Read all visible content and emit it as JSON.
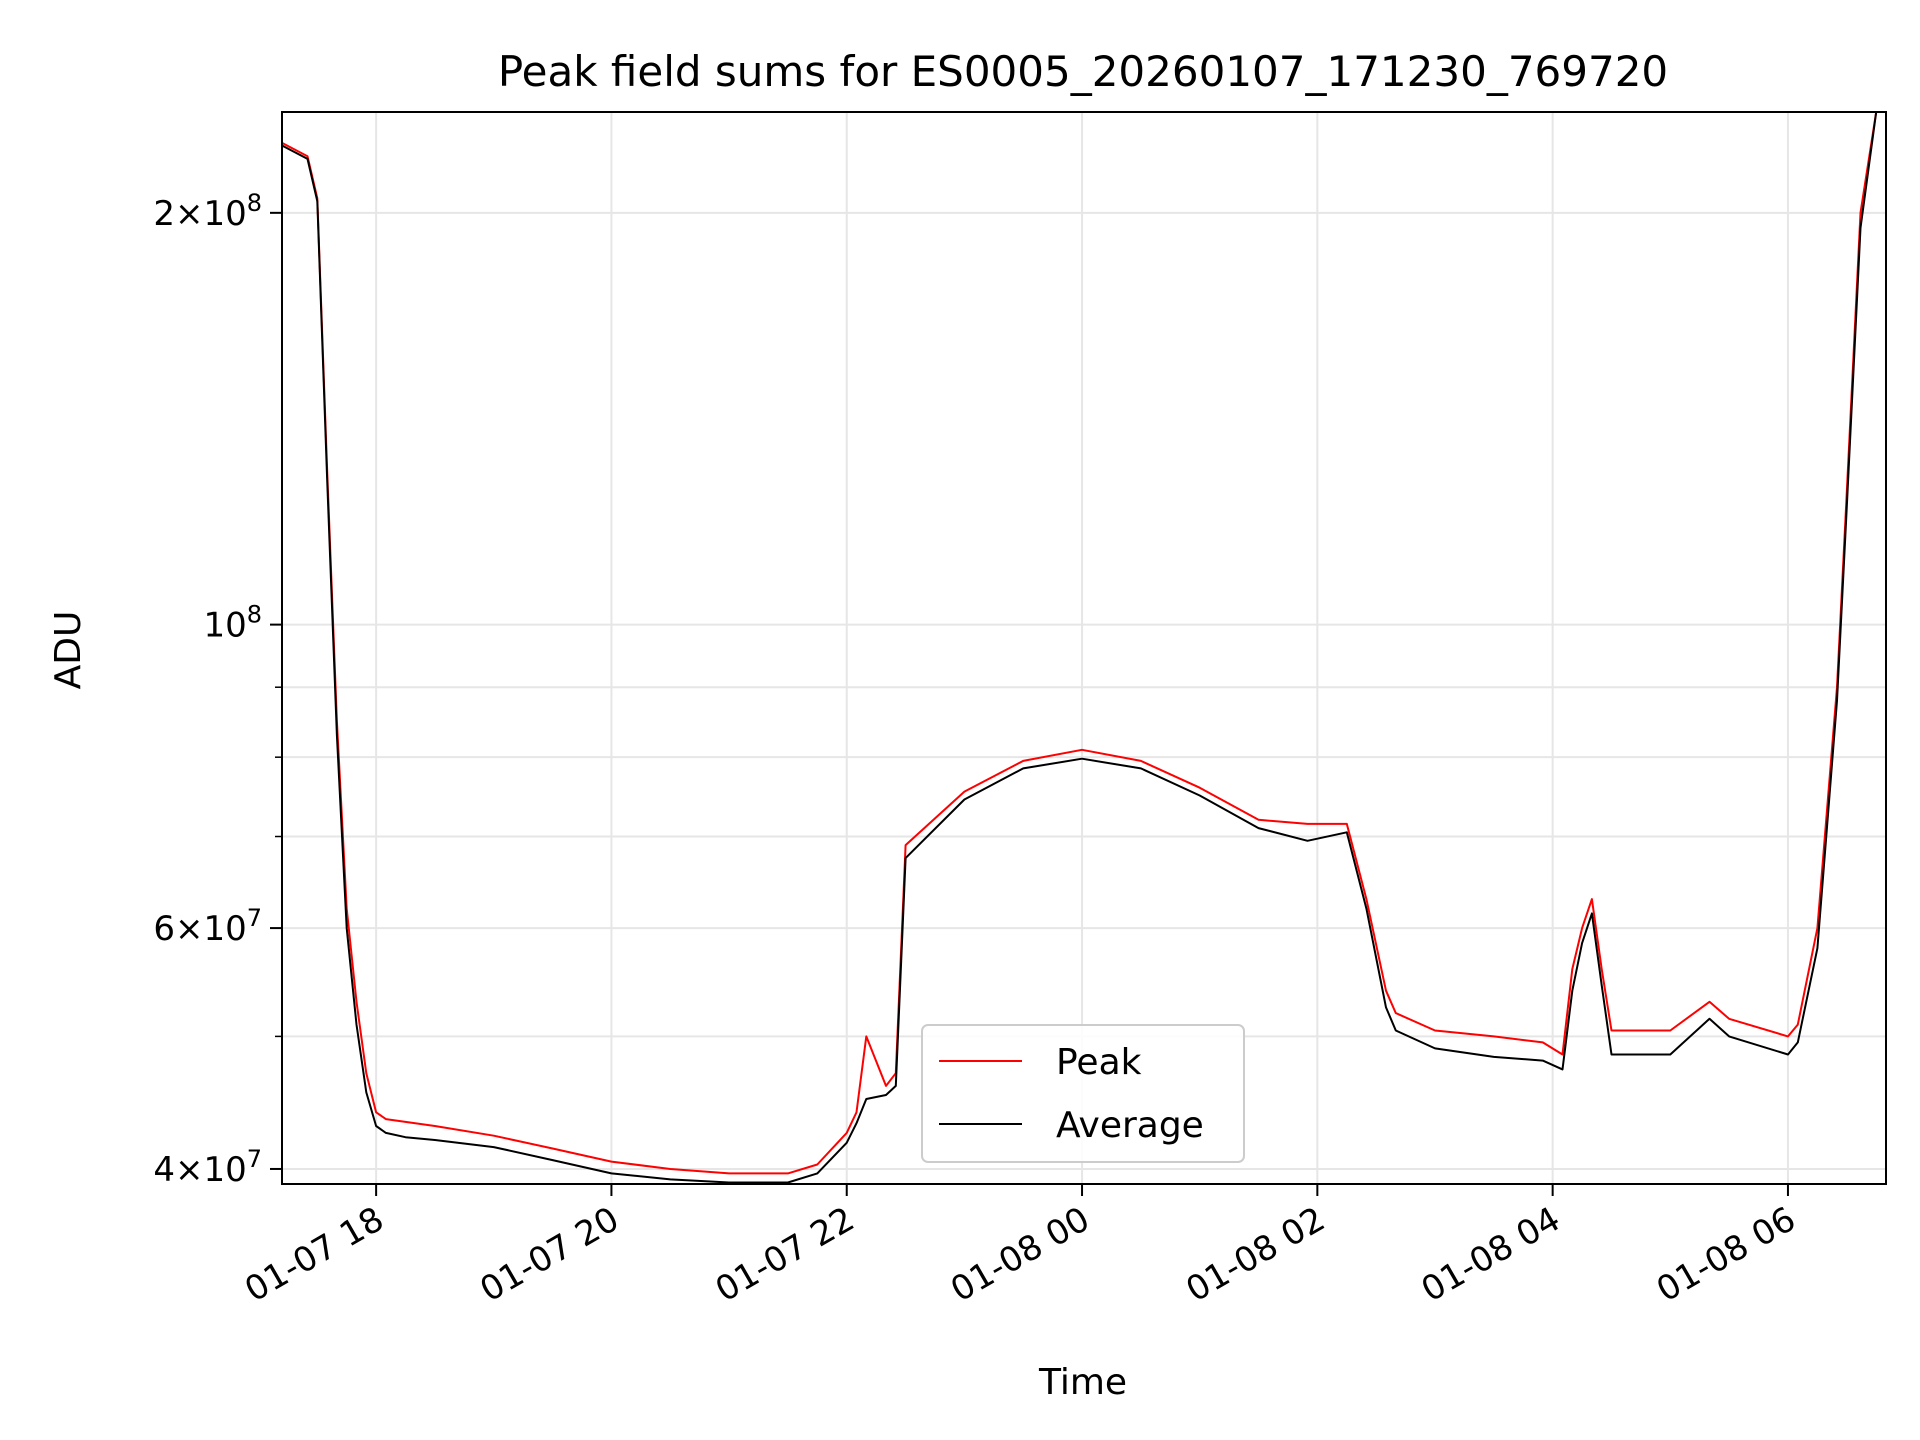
{
  "chart_data": {
    "type": "line",
    "title": "Peak field sums for ES0005_20260107_171230_769720",
    "xlabel": "Time",
    "ylabel": "ADU",
    "y_scale": "log",
    "ylim": [
      39000000,
      237000000
    ],
    "xlim": [
      "2026-01-07 17:12",
      "2026-01-08 06:50"
    ],
    "grid": true,
    "legend_position": "lower-center",
    "x_ticks": [
      {
        "value": "2026-01-07 18:00",
        "label": "01-07 18"
      },
      {
        "value": "2026-01-07 20:00",
        "label": "01-07 20"
      },
      {
        "value": "2026-01-07 22:00",
        "label": "01-07 22"
      },
      {
        "value": "2026-01-08 00:00",
        "label": "01-08 00"
      },
      {
        "value": "2026-01-08 02:00",
        "label": "01-08 02"
      },
      {
        "value": "2026-01-08 04:00",
        "label": "01-08 04"
      },
      {
        "value": "2026-01-08 06:00",
        "label": "01-08 06"
      }
    ],
    "y_ticks": [
      {
        "value": 40000000,
        "mantissa": "4",
        "exponent": "7"
      },
      {
        "value": 60000000,
        "mantissa": "6",
        "exponent": "7"
      },
      {
        "value": 100000000,
        "mantissa": "",
        "exponent": "8"
      },
      {
        "value": 200000000,
        "mantissa": "2",
        "exponent": "8"
      }
    ],
    "y_minor_ticks": [
      50000000,
      70000000,
      80000000,
      90000000
    ],
    "series": [
      {
        "name": "Peak",
        "color": "#ff0000",
        "x": [
          "2026-01-07 17:12",
          "2026-01-07 17:25",
          "2026-01-07 17:30",
          "2026-01-07 17:35",
          "2026-01-07 17:40",
          "2026-01-07 17:45",
          "2026-01-07 17:50",
          "2026-01-07 17:55",
          "2026-01-07 18:00",
          "2026-01-07 18:05",
          "2026-01-07 18:15",
          "2026-01-07 18:30",
          "2026-01-07 19:00",
          "2026-01-07 19:30",
          "2026-01-07 20:00",
          "2026-01-07 20:30",
          "2026-01-07 21:00",
          "2026-01-07 21:30",
          "2026-01-07 21:45",
          "2026-01-07 22:00",
          "2026-01-07 22:05",
          "2026-01-07 22:10",
          "2026-01-07 22:20",
          "2026-01-07 22:25",
          "2026-01-07 22:30",
          "2026-01-07 23:00",
          "2026-01-07 23:30",
          "2026-01-08 00:00",
          "2026-01-08 00:30",
          "2026-01-08 01:00",
          "2026-01-08 01:30",
          "2026-01-08 01:55",
          "2026-01-08 02:15",
          "2026-01-08 02:25",
          "2026-01-08 02:35",
          "2026-01-08 02:40",
          "2026-01-08 03:00",
          "2026-01-08 03:30",
          "2026-01-08 03:55",
          "2026-01-08 04:05",
          "2026-01-08 04:10",
          "2026-01-08 04:15",
          "2026-01-08 04:20",
          "2026-01-08 04:25",
          "2026-01-08 04:30",
          "2026-01-08 05:00",
          "2026-01-08 05:20",
          "2026-01-08 05:30",
          "2026-01-08 06:00",
          "2026-01-08 06:05",
          "2026-01-08 06:15",
          "2026-01-08 06:25",
          "2026-01-08 06:30",
          "2026-01-08 06:37",
          "2026-01-08 06:45",
          "2026-01-08 06:50"
        ],
        "y": [
          225000000,
          220000000,
          205000000,
          130000000,
          85000000,
          62000000,
          53000000,
          47000000,
          44000000,
          43500000,
          43300000,
          43000000,
          42300000,
          41400000,
          40500000,
          40000000,
          39700000,
          39700000,
          40300000,
          42500000,
          44000000,
          50000000,
          46000000,
          47000000,
          69000000,
          75500000,
          79500000,
          81000000,
          79500000,
          76000000,
          72000000,
          71500000,
          71500000,
          63000000,
          54000000,
          52000000,
          50500000,
          50000000,
          49500000,
          48500000,
          56000000,
          60000000,
          63000000,
          56000000,
          50500000,
          50500000,
          53000000,
          51500000,
          50000000,
          51000000,
          60000000,
          90000000,
          125000000,
          200000000,
          237000000,
          237000000
        ]
      },
      {
        "name": "Average",
        "color": "#000000",
        "x": [
          "2026-01-07 17:12",
          "2026-01-07 17:25",
          "2026-01-07 17:30",
          "2026-01-07 17:35",
          "2026-01-07 17:40",
          "2026-01-07 17:45",
          "2026-01-07 17:50",
          "2026-01-07 17:55",
          "2026-01-07 18:00",
          "2026-01-07 18:05",
          "2026-01-07 18:15",
          "2026-01-07 18:30",
          "2026-01-07 19:00",
          "2026-01-07 19:30",
          "2026-01-07 20:00",
          "2026-01-07 20:30",
          "2026-01-07 21:00",
          "2026-01-07 21:30",
          "2026-01-07 21:45",
          "2026-01-07 22:00",
          "2026-01-07 22:05",
          "2026-01-07 22:10",
          "2026-01-07 22:20",
          "2026-01-07 22:25",
          "2026-01-07 22:30",
          "2026-01-07 23:00",
          "2026-01-07 23:30",
          "2026-01-08 00:00",
          "2026-01-08 00:30",
          "2026-01-08 01:00",
          "2026-01-08 01:30",
          "2026-01-08 01:55",
          "2026-01-08 02:15",
          "2026-01-08 02:25",
          "2026-01-08 02:35",
          "2026-01-08 02:40",
          "2026-01-08 03:00",
          "2026-01-08 03:30",
          "2026-01-08 03:55",
          "2026-01-08 04:05",
          "2026-01-08 04:10",
          "2026-01-08 04:15",
          "2026-01-08 04:20",
          "2026-01-08 04:25",
          "2026-01-08 04:30",
          "2026-01-08 05:00",
          "2026-01-08 05:20",
          "2026-01-08 05:30",
          "2026-01-08 06:00",
          "2026-01-08 06:05",
          "2026-01-08 06:15",
          "2026-01-08 06:25",
          "2026-01-08 06:30",
          "2026-01-08 06:37",
          "2026-01-08 06:45",
          "2026-01-08 06:50"
        ],
        "y": [
          224000000,
          219000000,
          204000000,
          128000000,
          83000000,
          60000000,
          51000000,
          45500000,
          43000000,
          42500000,
          42200000,
          42000000,
          41500000,
          40600000,
          39700000,
          39300000,
          39100000,
          39100000,
          39700000,
          41800000,
          43200000,
          45000000,
          45300000,
          46000000,
          67500000,
          74500000,
          78500000,
          79800000,
          78500000,
          75000000,
          71000000,
          69500000,
          70500000,
          62000000,
          52500000,
          50500000,
          49000000,
          48300000,
          48000000,
          47300000,
          54000000,
          58500000,
          61500000,
          54500000,
          48500000,
          48500000,
          51500000,
          50000000,
          48500000,
          49500000,
          58000000,
          88000000,
          122000000,
          195000000,
          237000000,
          237000000
        ]
      }
    ]
  }
}
